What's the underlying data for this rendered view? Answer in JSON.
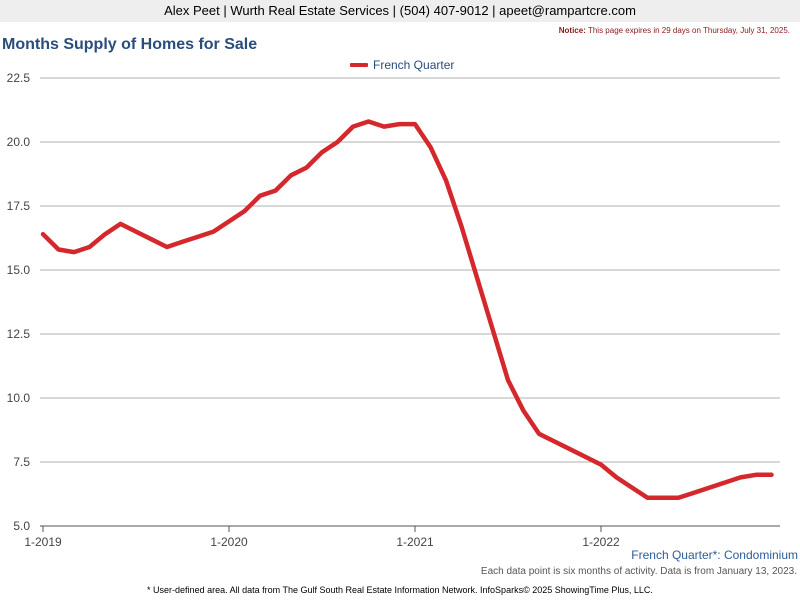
{
  "header": {
    "contact": "Alex Peet | Wurth Real Estate Services | (504) 407-9012 | apeet@rampartcre.com",
    "notice_label": "Notice:",
    "notice_text": "This page expires in 29 days on Thursday, July 31, 2025."
  },
  "footer": {
    "subtitle": "French Quarter*: Condominium",
    "info": "Each data point is six months of activity. Data is from January 13, 2023.",
    "note": "* User-defined area. All data from The Gulf South Real Estate Information Network. InfoSparks© 2025 ShowingTime Plus, LLC."
  },
  "colors": {
    "series": "#d4282d",
    "title": "#2a4d7a",
    "grid": "#b0b0b0"
  },
  "chart_data": {
    "type": "line",
    "title": "Months Supply of Homes for Sale",
    "xlabel": "",
    "ylabel": "",
    "ylim": [
      5.0,
      22.5
    ],
    "yticks": [
      "5.0",
      "7.5",
      "10.0",
      "12.5",
      "15.0",
      "17.5",
      "20.0",
      "22.5"
    ],
    "xticks": [
      {
        "label": "1-2019",
        "value": "2019-01"
      },
      {
        "label": "1-2020",
        "value": "2020-01"
      },
      {
        "label": "1-2021",
        "value": "2021-01"
      },
      {
        "label": "1-2022",
        "value": "2022-01"
      }
    ],
    "grid": true,
    "legend": "top-center",
    "x": [
      "2019-01",
      "2019-02",
      "2019-03",
      "2019-04",
      "2019-05",
      "2019-06",
      "2019-07",
      "2019-08",
      "2019-09",
      "2019-10",
      "2019-11",
      "2019-12",
      "2020-01",
      "2020-02",
      "2020-03",
      "2020-04",
      "2020-05",
      "2020-06",
      "2020-07",
      "2020-08",
      "2020-09",
      "2020-10",
      "2020-11",
      "2020-12",
      "2021-01",
      "2021-02",
      "2021-03",
      "2021-04",
      "2021-05",
      "2021-06",
      "2021-07",
      "2021-08",
      "2021-09",
      "2021-10",
      "2021-11",
      "2021-12",
      "2022-01",
      "2022-02",
      "2022-03",
      "2022-04",
      "2022-05",
      "2022-06",
      "2022-07",
      "2022-08",
      "2022-09",
      "2022-10",
      "2022-11",
      "2022-12"
    ],
    "series": [
      {
        "name": "French Quarter",
        "values": [
          16.4,
          15.8,
          15.7,
          15.9,
          16.4,
          16.8,
          16.5,
          16.2,
          15.9,
          16.1,
          16.3,
          16.5,
          16.9,
          17.3,
          17.9,
          18.1,
          18.7,
          19.0,
          19.6,
          20.0,
          20.6,
          20.8,
          20.6,
          20.7,
          20.7,
          19.8,
          18.5,
          16.7,
          14.7,
          12.7,
          10.7,
          9.5,
          8.6,
          8.3,
          8.0,
          7.7,
          7.4,
          6.9,
          6.5,
          6.1,
          6.1,
          6.1,
          6.3,
          6.5,
          6.7,
          6.9,
          7.0,
          7.0
        ]
      }
    ]
  }
}
